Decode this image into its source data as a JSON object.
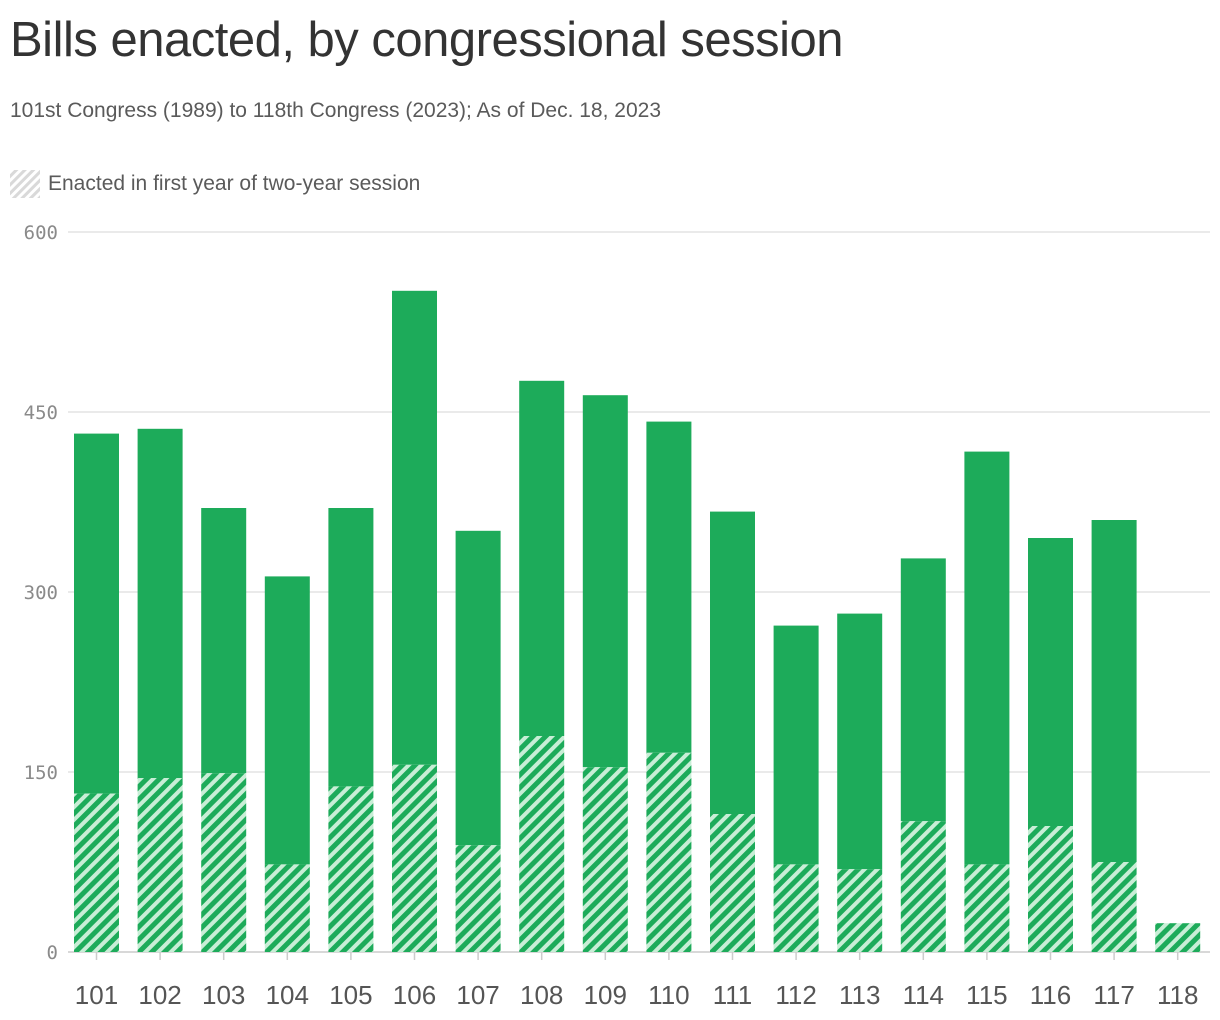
{
  "title": "Bills enacted, by congressional session",
  "subtitle": "101st Congress (1989) to 118th Congress (2023); As of Dec. 18, 2023",
  "legend": {
    "label": "Enacted in first year of two-year session"
  },
  "colors": {
    "bar": "#1dab5a",
    "hatch_light": "#c8eed6",
    "gridline": "#e3e3e3",
    "axis": "#cccccc"
  },
  "chart_data": {
    "type": "bar",
    "stacked": true,
    "categories": [
      "101",
      "102",
      "103",
      "104",
      "105",
      "106",
      "107",
      "108",
      "109",
      "110",
      "111",
      "112",
      "113",
      "114",
      "115",
      "116",
      "117",
      "118"
    ],
    "series": [
      {
        "name": "Enacted in first year of two-year session",
        "values": [
          132,
          145,
          149,
          73,
          138,
          156,
          89,
          180,
          154,
          166,
          115,
          73,
          69,
          109,
          73,
          105,
          75,
          24
        ]
      },
      {
        "values": [
          300,
          291,
          221,
          240,
          232,
          395,
          262,
          296,
          310,
          276,
          252,
          199,
          213,
          219,
          344,
          240,
          285,
          0
        ]
      }
    ],
    "yticks": [
      0,
      150,
      300,
      450,
      600
    ],
    "ylim": [
      0,
      600
    ],
    "grid": true,
    "legend_position": "top-left"
  }
}
